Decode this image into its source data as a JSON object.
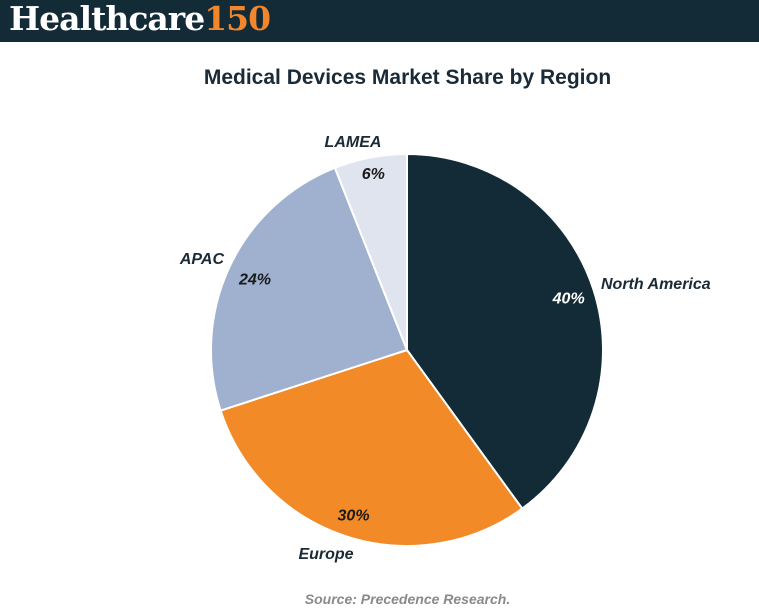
{
  "header": {
    "logo_word": "Healthcare",
    "logo_number": "150"
  },
  "chart_data": {
    "type": "pie",
    "title": "Medical Devices Market Share by Region",
    "categories": [
      "North America",
      "Europe",
      "APAC",
      "LAMEA"
    ],
    "values": [
      40,
      30,
      24,
      6
    ],
    "value_labels": [
      "40%",
      "30%",
      "24%",
      "6%"
    ],
    "colors": [
      "#132a37",
      "#f28a27",
      "#9fb1cf",
      "#dfe4ef"
    ],
    "value_label_colors": [
      "#ffffff",
      "#1a1a1a",
      "#1a1a1a",
      "#1a1a1a"
    ],
    "legend": "none"
  },
  "source": "Source: Precedence Research."
}
